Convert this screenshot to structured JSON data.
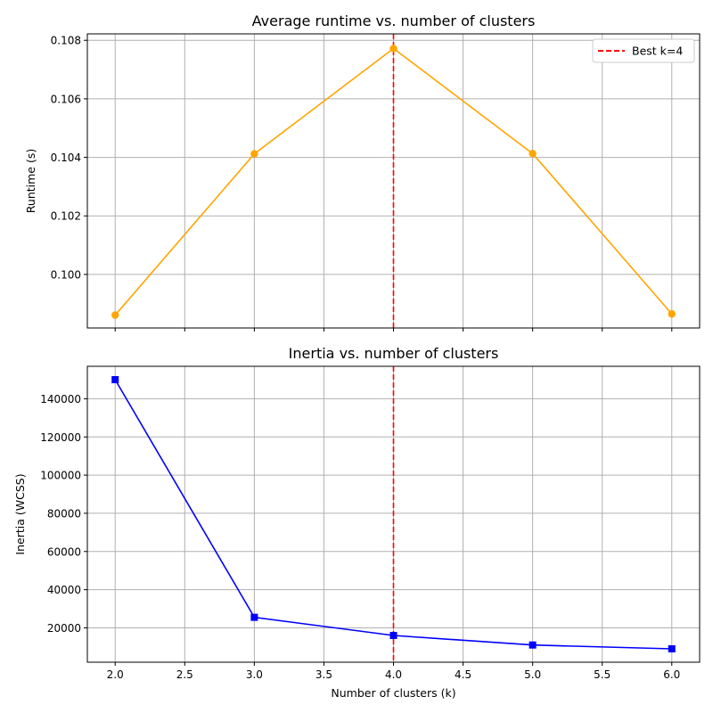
{
  "chart_data": [
    {
      "type": "line",
      "title": "Average runtime vs. number of clusters",
      "xlabel": "",
      "ylabel": "Runtime (s)",
      "x": [
        2,
        3,
        4,
        5,
        6
      ],
      "xlim": [
        1.8,
        6.2
      ],
      "ylim": [
        0.09817,
        0.10822
      ],
      "xticks": [
        2.0,
        2.5,
        3.0,
        3.5,
        4.0,
        4.5,
        5.0,
        5.5,
        6.0
      ],
      "yticks": [
        0.1,
        0.102,
        0.104,
        0.106,
        0.108
      ],
      "ytick_labels": [
        "0.100",
        "0.102",
        "0.104",
        "0.106",
        "0.108"
      ],
      "show_xtick_labels": false,
      "grid": true,
      "legend": "upper right",
      "series": [
        {
          "values": [
            0.09861,
            0.10412,
            0.10772,
            0.10413,
            0.09865
          ],
          "color": "#ffa500",
          "marker": "circle"
        }
      ],
      "vline": {
        "x": 4,
        "label": "Best k=4",
        "color": "#ff0000",
        "style": "dashed"
      }
    },
    {
      "type": "line",
      "title": "Inertia vs. number of clusters",
      "xlabel": "Number of clusters (k)",
      "ylabel": "Inertia (WCSS)",
      "x": [
        2,
        3,
        4,
        5,
        6
      ],
      "xlim": [
        1.8,
        6.2
      ],
      "ylim": [
        2000,
        157000
      ],
      "xticks": [
        2.0,
        2.5,
        3.0,
        3.5,
        4.0,
        4.5,
        5.0,
        5.5,
        6.0
      ],
      "xtick_labels": [
        "2.0",
        "2.5",
        "3.0",
        "3.5",
        "4.0",
        "4.5",
        "5.0",
        "5.5",
        "6.0"
      ],
      "yticks": [
        20000,
        40000,
        60000,
        80000,
        100000,
        120000,
        140000
      ],
      "ytick_labels": [
        "20000",
        "40000",
        "60000",
        "80000",
        "100000",
        "120000",
        "140000"
      ],
      "show_xtick_labels": true,
      "grid": true,
      "series": [
        {
          "values": [
            150000,
            25500,
            16000,
            11000,
            9000
          ],
          "color": "#0000ff",
          "marker": "square"
        }
      ],
      "vline": {
        "x": 4,
        "color": "#ff0000",
        "style": "dashed"
      }
    }
  ]
}
